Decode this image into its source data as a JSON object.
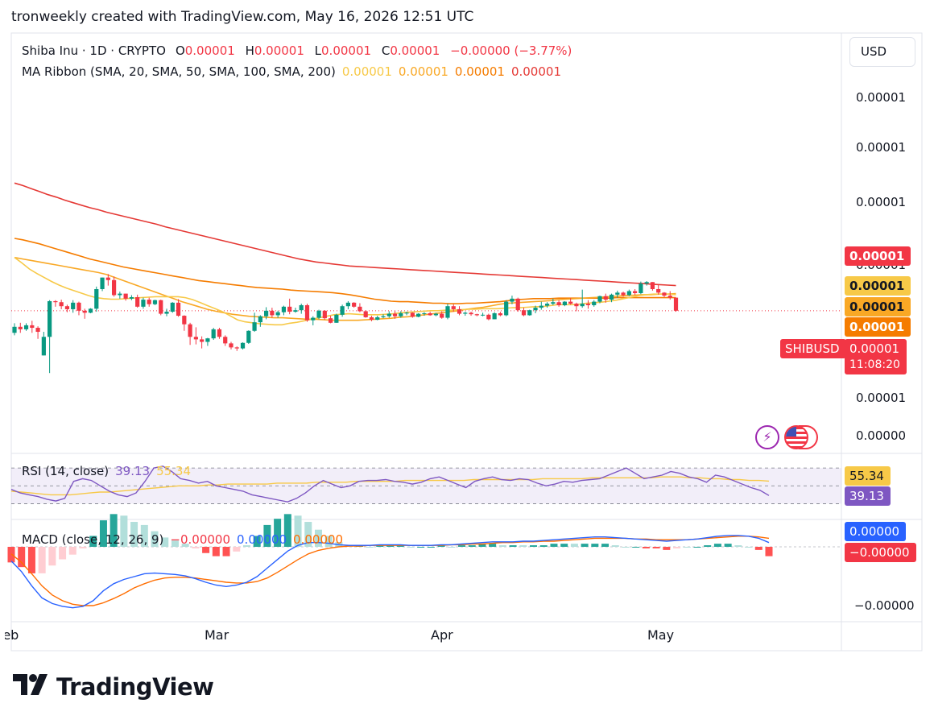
{
  "header": {
    "text": "tronweekly created with TradingView.com, May 16, 2026 12:51 UTC"
  },
  "legend": {
    "symbol": "Shiba Inu · 1D · CRYPTO",
    "open_label": "O",
    "open": "0.00001",
    "high_label": "H",
    "high": "0.00001",
    "low_label": "L",
    "low": "0.00001",
    "close_label": "C",
    "close": "0.00001",
    "change": "−0.00000 (−3.77%)",
    "ma_title": "MA Ribbon (SMA, 20, SMA, 50, SMA, 100, SMA, 200)",
    "ma_values": [
      "0.00001",
      "0.00001",
      "0.00001",
      "0.00001"
    ],
    "rsi_title": "RSI (14, close)",
    "rsi_value": "39.13",
    "rsi_ma_value": "55.34",
    "macd_title": "MACD (close, 12, 26, 9)",
    "macd_hist": "−0.00000",
    "macd_line": "0.00000",
    "macd_signal": "0.00000"
  },
  "currency": "USD",
  "price_axis": [
    "0.00001",
    "0.00001",
    "0.00001",
    "0.00001",
    "0.00001",
    "0.00000"
  ],
  "tags": {
    "ma200": "0.00001",
    "ma20": "0.00001",
    "ma50": "0.00001",
    "ma100": "0.00001",
    "symbol": "SHIBUSD",
    "price": "0.00001",
    "countdown": "11:08:20",
    "rsi_ma": "55.34",
    "rsi": "39.13",
    "macd_line": "0.00000",
    "macd_hist": "−0.00000",
    "macd_axis": "−0.00000"
  },
  "months": [
    "Feb",
    "Mar",
    "Apr",
    "May"
  ],
  "brand": "TradingView",
  "colors": {
    "up": "#089981",
    "down": "#f23645",
    "ma20": "#f7c948",
    "ma50": "#f9a825",
    "ma100": "#f57c00",
    "ma200": "#e53935",
    "rsi": "#7e57c2",
    "macd": "#2962ff",
    "signal": "#ff6d00"
  },
  "chart_data": {
    "type": "candlestick",
    "symbol": "SHIBUSD",
    "candles": [
      [
        0.3,
        0.49,
        0.25,
        0.42
      ],
      [
        0.42,
        0.5,
        0.3,
        0.37
      ],
      [
        0.37,
        0.49,
        0.34,
        0.45
      ],
      [
        0.45,
        0.54,
        0.3,
        0.4
      ],
      [
        0.4,
        0.43,
        0.18,
        0.32
      ],
      [
        -0.15,
        0.32,
        -0.15,
        0.22
      ],
      [
        0.22,
        0.95,
        -0.5,
        0.93
      ],
      [
        0.93,
        0.95,
        0.82,
        0.91
      ],
      [
        0.91,
        0.96,
        0.77,
        0.83
      ],
      [
        0.83,
        0.86,
        0.71,
        0.77
      ],
      [
        0.77,
        0.95,
        0.7,
        0.9
      ],
      [
        0.9,
        0.92,
        0.65,
        0.74
      ],
      [
        0.74,
        0.78,
        0.58,
        0.7
      ],
      [
        0.7,
        0.79,
        0.69,
        0.78
      ],
      [
        0.78,
        1.22,
        0.72,
        1.17
      ],
      [
        1.17,
        1.4,
        1.13,
        1.4
      ],
      [
        1.4,
        1.47,
        1.24,
        1.35
      ],
      [
        1.35,
        1.42,
        1.02,
        1.05
      ],
      [
        1.05,
        1.12,
        0.98,
        1.08
      ],
      [
        1.08,
        1.08,
        0.94,
        0.98
      ],
      [
        0.98,
        1.05,
        0.95,
        1.01
      ],
      [
        1.01,
        1.06,
        0.8,
        0.82
      ],
      [
        0.82,
        1.0,
        0.78,
        0.96
      ],
      [
        0.96,
        1.0,
        0.82,
        0.87
      ],
      [
        0.87,
        0.96,
        0.85,
        0.95
      ],
      [
        0.95,
        0.96,
        0.65,
        0.68
      ],
      [
        0.68,
        0.78,
        0.63,
        0.72
      ],
      [
        0.72,
        0.91,
        0.7,
        0.9
      ],
      [
        0.9,
        0.97,
        0.62,
        0.64
      ],
      [
        0.64,
        0.65,
        0.34,
        0.47
      ],
      [
        0.47,
        0.5,
        0.06,
        0.22
      ],
      [
        0.22,
        0.41,
        0.07,
        0.17
      ],
      [
        0.17,
        0.23,
        -0.01,
        0.12
      ],
      [
        0.12,
        0.2,
        0.04,
        0.19
      ],
      [
        0.19,
        0.4,
        0.16,
        0.37
      ],
      [
        0.37,
        0.4,
        0.18,
        0.22
      ],
      [
        0.22,
        0.25,
        0.04,
        0.09
      ],
      [
        0.09,
        0.12,
        -0.03,
        0.01
      ],
      [
        0.01,
        0.03,
        -0.06,
        -0.01
      ],
      [
        -0.01,
        0.11,
        -0.03,
        0.1
      ],
      [
        0.1,
        0.35,
        0.08,
        0.34
      ],
      [
        0.34,
        0.7,
        0.32,
        0.51
      ],
      [
        0.51,
        0.65,
        0.42,
        0.63
      ],
      [
        0.63,
        0.81,
        0.57,
        0.74
      ],
      [
        0.74,
        0.8,
        0.6,
        0.65
      ],
      [
        0.65,
        0.74,
        0.6,
        0.71
      ],
      [
        0.71,
        0.84,
        0.65,
        0.82
      ],
      [
        0.82,
        0.98,
        0.67,
        0.72
      ],
      [
        0.72,
        0.8,
        0.7,
        0.75
      ],
      [
        0.75,
        0.88,
        0.68,
        0.85
      ],
      [
        0.85,
        0.88,
        0.52,
        0.55
      ],
      [
        0.55,
        0.63,
        0.45,
        0.6
      ],
      [
        0.6,
        0.76,
        0.57,
        0.74
      ],
      [
        0.74,
        0.75,
        0.56,
        0.59
      ],
      [
        0.59,
        0.64,
        0.49,
        0.5
      ],
      [
        0.5,
        0.68,
        0.5,
        0.66
      ],
      [
        0.66,
        0.86,
        0.62,
        0.83
      ],
      [
        0.83,
        0.93,
        0.77,
        0.9
      ],
      [
        0.9,
        0.91,
        0.8,
        0.82
      ],
      [
        0.82,
        0.89,
        0.71,
        0.73
      ],
      [
        0.73,
        0.75,
        0.6,
        0.61
      ],
      [
        0.61,
        0.64,
        0.53,
        0.56
      ],
      [
        0.56,
        0.64,
        0.55,
        0.61
      ],
      [
        0.61,
        0.67,
        0.59,
        0.63
      ],
      [
        0.63,
        0.73,
        0.6,
        0.68
      ],
      [
        0.68,
        0.74,
        0.58,
        0.63
      ],
      [
        0.63,
        0.73,
        0.6,
        0.69
      ],
      [
        0.69,
        0.72,
        0.65,
        0.7
      ],
      [
        0.7,
        0.71,
        0.6,
        0.62
      ],
      [
        0.62,
        0.69,
        0.61,
        0.68
      ],
      [
        0.68,
        0.71,
        0.64,
        0.69
      ],
      [
        0.69,
        0.72,
        0.64,
        0.65
      ],
      [
        0.65,
        0.7,
        0.63,
        0.68
      ],
      [
        0.68,
        0.73,
        0.58,
        0.6
      ],
      [
        0.6,
        0.88,
        0.57,
        0.83
      ],
      [
        0.83,
        0.87,
        0.72,
        0.77
      ],
      [
        0.77,
        0.83,
        0.65,
        0.68
      ],
      [
        0.68,
        0.72,
        0.64,
        0.7
      ],
      [
        0.7,
        0.72,
        0.64,
        0.67
      ],
      [
        0.67,
        0.68,
        0.63,
        0.65
      ],
      [
        0.65,
        0.7,
        0.63,
        0.66
      ],
      [
        0.66,
        0.68,
        0.55,
        0.57
      ],
      [
        0.57,
        0.71,
        0.57,
        0.69
      ],
      [
        0.69,
        0.72,
        0.63,
        0.65
      ],
      [
        0.65,
        0.95,
        0.63,
        0.92
      ],
      [
        0.92,
        1.04,
        0.87,
        0.98
      ],
      [
        0.98,
        1.0,
        0.72,
        0.75
      ],
      [
        0.75,
        0.8,
        0.63,
        0.65
      ],
      [
        0.65,
        0.76,
        0.64,
        0.75
      ],
      [
        0.75,
        0.84,
        0.69,
        0.8
      ],
      [
        0.8,
        0.92,
        0.76,
        0.84
      ],
      [
        0.84,
        0.91,
        0.8,
        0.88
      ],
      [
        0.88,
        0.98,
        0.85,
        0.91
      ],
      [
        0.91,
        0.95,
        0.82,
        0.85
      ],
      [
        0.85,
        0.93,
        0.83,
        0.92
      ],
      [
        0.92,
        0.99,
        0.86,
        0.88
      ],
      [
        0.88,
        0.9,
        0.73,
        0.83
      ],
      [
        0.83,
        1.16,
        0.8,
        0.88
      ],
      [
        0.88,
        0.95,
        0.78,
        0.85
      ],
      [
        0.85,
        0.95,
        0.82,
        0.92
      ],
      [
        0.92,
        1.04,
        0.89,
        1.03
      ],
      [
        1.03,
        1.08,
        0.9,
        0.96
      ],
      [
        0.96,
        1.08,
        0.91,
        1.06
      ],
      [
        1.06,
        1.14,
        1.0,
        1.1
      ],
      [
        1.1,
        1.12,
        1.02,
        1.05
      ],
      [
        1.05,
        1.16,
        1.03,
        1.13
      ],
      [
        1.13,
        1.17,
        1.05,
        1.09
      ],
      [
        1.09,
        1.32,
        1.07,
        1.28
      ],
      [
        1.28,
        1.33,
        1.24,
        1.31
      ],
      [
        1.31,
        1.31,
        1.14,
        1.17
      ],
      [
        1.17,
        1.25,
        1.06,
        1.1
      ],
      [
        1.1,
        1.11,
        1.01,
        1.04
      ],
      [
        1.04,
        1.13,
        0.96,
        1.0
      ],
      [
        1.0,
        1.0,
        0.72,
        0.74
      ]
    ],
    "ma20": [
      1.8,
      1.69,
      1.57,
      1.48,
      1.4,
      1.32,
      1.25,
      1.19,
      1.14,
      1.09,
      1.04,
      1.0,
      0.98,
      0.97,
      0.97,
      0.98,
      0.99,
      1.0,
      1.01,
      1.02,
      1.02,
      1.02,
      1.02,
      1.0,
      0.96,
      0.9,
      0.84,
      0.78,
      0.72,
      0.64,
      0.56,
      0.52,
      0.5,
      0.48,
      0.47,
      0.46,
      0.46,
      0.49,
      0.51,
      0.54,
      0.57,
      0.6,
      0.63,
      0.66,
      0.67,
      0.68,
      0.67,
      0.66,
      0.66,
      0.66,
      0.67,
      0.68,
      0.7,
      0.71,
      0.72,
      0.73,
      0.74,
      0.74,
      0.75,
      0.75,
      0.76,
      0.77,
      0.77,
      0.78,
      0.78,
      0.78,
      0.79,
      0.8,
      0.8,
      0.81,
      0.82,
      0.82,
      0.84,
      0.86,
      0.86,
      0.86,
      0.87,
      0.89,
      0.9,
      0.91,
      0.93,
      0.95,
      0.98,
      1.01,
      1.04,
      1.06,
      1.07,
      1.07,
      1.07,
      1.06
    ],
    "ma50": [
      1.8,
      1.77,
      1.74,
      1.71,
      1.68,
      1.65,
      1.62,
      1.59,
      1.56,
      1.53,
      1.5,
      1.46,
      1.4,
      1.34,
      1.28,
      1.22,
      1.16,
      1.1,
      1.04,
      0.98,
      0.92,
      0.87,
      0.82,
      0.77,
      0.73,
      0.7,
      0.67,
      0.65,
      0.63,
      0.62,
      0.61,
      0.6,
      0.6,
      0.59,
      0.58,
      0.57,
      0.57,
      0.56,
      0.55,
      0.55,
      0.55,
      0.55,
      0.56,
      0.57,
      0.58,
      0.59,
      0.61,
      0.62,
      0.64,
      0.66,
      0.68,
      0.7,
      0.72,
      0.74,
      0.77,
      0.79,
      0.81,
      0.84,
      0.87,
      0.89,
      0.9,
      0.91,
      0.92,
      0.93,
      0.94,
      0.96,
      0.97,
      0.98,
      0.99,
      1.0,
      1.01,
      1.02,
      1.03,
      1.04,
      1.05,
      1.06,
      1.06,
      1.07,
      1.07,
      1.08
    ],
    "ma100": [
      2.18,
      2.15,
      2.11,
      2.07,
      2.02,
      1.97,
      1.92,
      1.87,
      1.82,
      1.77,
      1.73,
      1.69,
      1.65,
      1.61,
      1.58,
      1.55,
      1.52,
      1.49,
      1.46,
      1.43,
      1.4,
      1.37,
      1.34,
      1.32,
      1.3,
      1.28,
      1.26,
      1.24,
      1.22,
      1.2,
      1.19,
      1.18,
      1.17,
      1.15,
      1.14,
      1.13,
      1.12,
      1.11,
      1.1,
      1.08,
      1.06,
      1.03,
      1.0,
      0.97,
      0.95,
      0.93,
      0.92,
      0.92,
      0.91,
      0.9,
      0.89,
      0.89,
      0.88,
      0.88,
      0.89,
      0.89,
      0.9,
      0.91,
      0.92,
      0.94,
      0.96,
      0.97,
      0.98,
      0.98,
      0.98,
      0.99,
      0.99,
      0.99,
      0.99,
      0.99,
      0.99,
      0.99,
      1.0,
      1.0,
      1.0,
      1.0,
      1.0,
      1.0,
      1.0,
      1.0
    ],
    "ma200": [
      3.28,
      3.23,
      3.17,
      3.11,
      3.05,
      3.0,
      2.94,
      2.89,
      2.84,
      2.79,
      2.75,
      2.7,
      2.66,
      2.62,
      2.58,
      2.54,
      2.5,
      2.46,
      2.41,
      2.37,
      2.33,
      2.29,
      2.25,
      2.21,
      2.17,
      2.13,
      2.09,
      2.05,
      2.01,
      1.97,
      1.93,
      1.89,
      1.85,
      1.81,
      1.77,
      1.74,
      1.71,
      1.69,
      1.67,
      1.65,
      1.63,
      1.62,
      1.61,
      1.6,
      1.59,
      1.58,
      1.57,
      1.56,
      1.55,
      1.54,
      1.53,
      1.52,
      1.51,
      1.5,
      1.49,
      1.48,
      1.47,
      1.46,
      1.45,
      1.44,
      1.43,
      1.42,
      1.41,
      1.4,
      1.39,
      1.38,
      1.37,
      1.36,
      1.35,
      1.34,
      1.33,
      1.32,
      1.31,
      1.3,
      1.29,
      1.28,
      1.27,
      1.26,
      1.25,
      1.24
    ],
    "rsi": [
      46,
      42,
      40,
      38,
      35,
      33,
      36,
      55,
      58,
      56,
      50,
      44,
      40,
      38,
      42,
      55,
      70,
      72,
      66,
      58,
      56,
      53,
      55,
      50,
      48,
      46,
      44,
      40,
      38,
      36,
      34,
      32,
      36,
      42,
      50,
      56,
      52,
      48,
      50,
      55,
      56,
      56,
      57,
      55,
      54,
      52,
      54,
      58,
      60,
      56,
      52,
      48,
      55,
      58,
      60,
      57,
      56,
      58,
      57,
      53,
      50,
      52,
      55,
      54,
      56,
      57,
      58,
      62,
      66,
      70,
      64,
      58,
      60,
      62,
      66,
      64,
      60,
      58,
      54,
      62,
      60,
      56,
      52,
      48,
      45,
      39.13
    ],
    "rsi_ma": [
      44,
      43,
      42,
      41,
      40,
      40,
      40,
      41,
      42,
      43,
      43,
      44,
      45,
      46,
      47,
      48,
      49,
      50,
      50,
      50,
      51,
      51,
      52,
      52,
      52,
      52,
      52,
      53,
      53,
      53,
      53,
      54,
      54,
      54,
      54,
      55,
      55,
      55,
      55,
      55,
      56,
      56,
      56,
      56,
      56,
      56,
      56,
      57,
      57,
      57,
      57,
      57,
      57,
      57,
      58,
      58,
      58,
      58,
      58,
      59,
      59,
      59,
      59,
      59,
      59,
      59,
      60,
      60,
      60,
      59,
      59,
      58,
      58,
      57,
      57,
      56,
      56,
      55.34
    ],
    "macd": [
      -0.2,
      -0.35,
      -0.55,
      -0.72,
      -0.8,
      -0.84,
      -0.86,
      -0.84,
      -0.76,
      -0.62,
      -0.52,
      -0.46,
      -0.42,
      -0.38,
      -0.37,
      -0.38,
      -0.39,
      -0.41,
      -0.45,
      -0.5,
      -0.54,
      -0.56,
      -0.54,
      -0.5,
      -0.42,
      -0.3,
      -0.18,
      -0.06,
      0.02,
      0.06,
      0.06,
      0.05,
      0.03,
      0.02,
      0.02,
      0.02,
      0.03,
      0.03,
      0.03,
      0.02,
      0.02,
      0.02,
      0.03,
      0.03,
      0.04,
      0.05,
      0.06,
      0.07,
      0.07,
      0.07,
      0.08,
      0.08,
      0.09,
      0.1,
      0.11,
      0.12,
      0.13,
      0.14,
      0.14,
      0.13,
      0.12,
      0.11,
      0.1,
      0.09,
      0.08,
      0.09,
      0.1,
      0.11,
      0.13,
      0.15,
      0.16,
      0.16,
      0.15,
      0.12,
      0.06
    ],
    "macd_signal": [
      -0.1,
      -0.22,
      -0.38,
      -0.55,
      -0.68,
      -0.76,
      -0.81,
      -0.83,
      -0.83,
      -0.79,
      -0.73,
      -0.66,
      -0.58,
      -0.52,
      -0.47,
      -0.44,
      -0.43,
      -0.43,
      -0.44,
      -0.46,
      -0.48,
      -0.5,
      -0.51,
      -0.51,
      -0.49,
      -0.44,
      -0.36,
      -0.27,
      -0.18,
      -0.1,
      -0.05,
      -0.02,
      0.0,
      0.01,
      0.01,
      0.02,
      0.02,
      0.02,
      0.02,
      0.02,
      0.02,
      0.02,
      0.02,
      0.03,
      0.03,
      0.04,
      0.04,
      0.05,
      0.06,
      0.06,
      0.07,
      0.07,
      0.08,
      0.08,
      0.09,
      0.1,
      0.11,
      0.12,
      0.12,
      0.12,
      0.12,
      0.11,
      0.11,
      0.1,
      0.1,
      0.1,
      0.1,
      0.11,
      0.12,
      0.13,
      0.14,
      0.15,
      0.15,
      0.14,
      0.12
    ]
  }
}
